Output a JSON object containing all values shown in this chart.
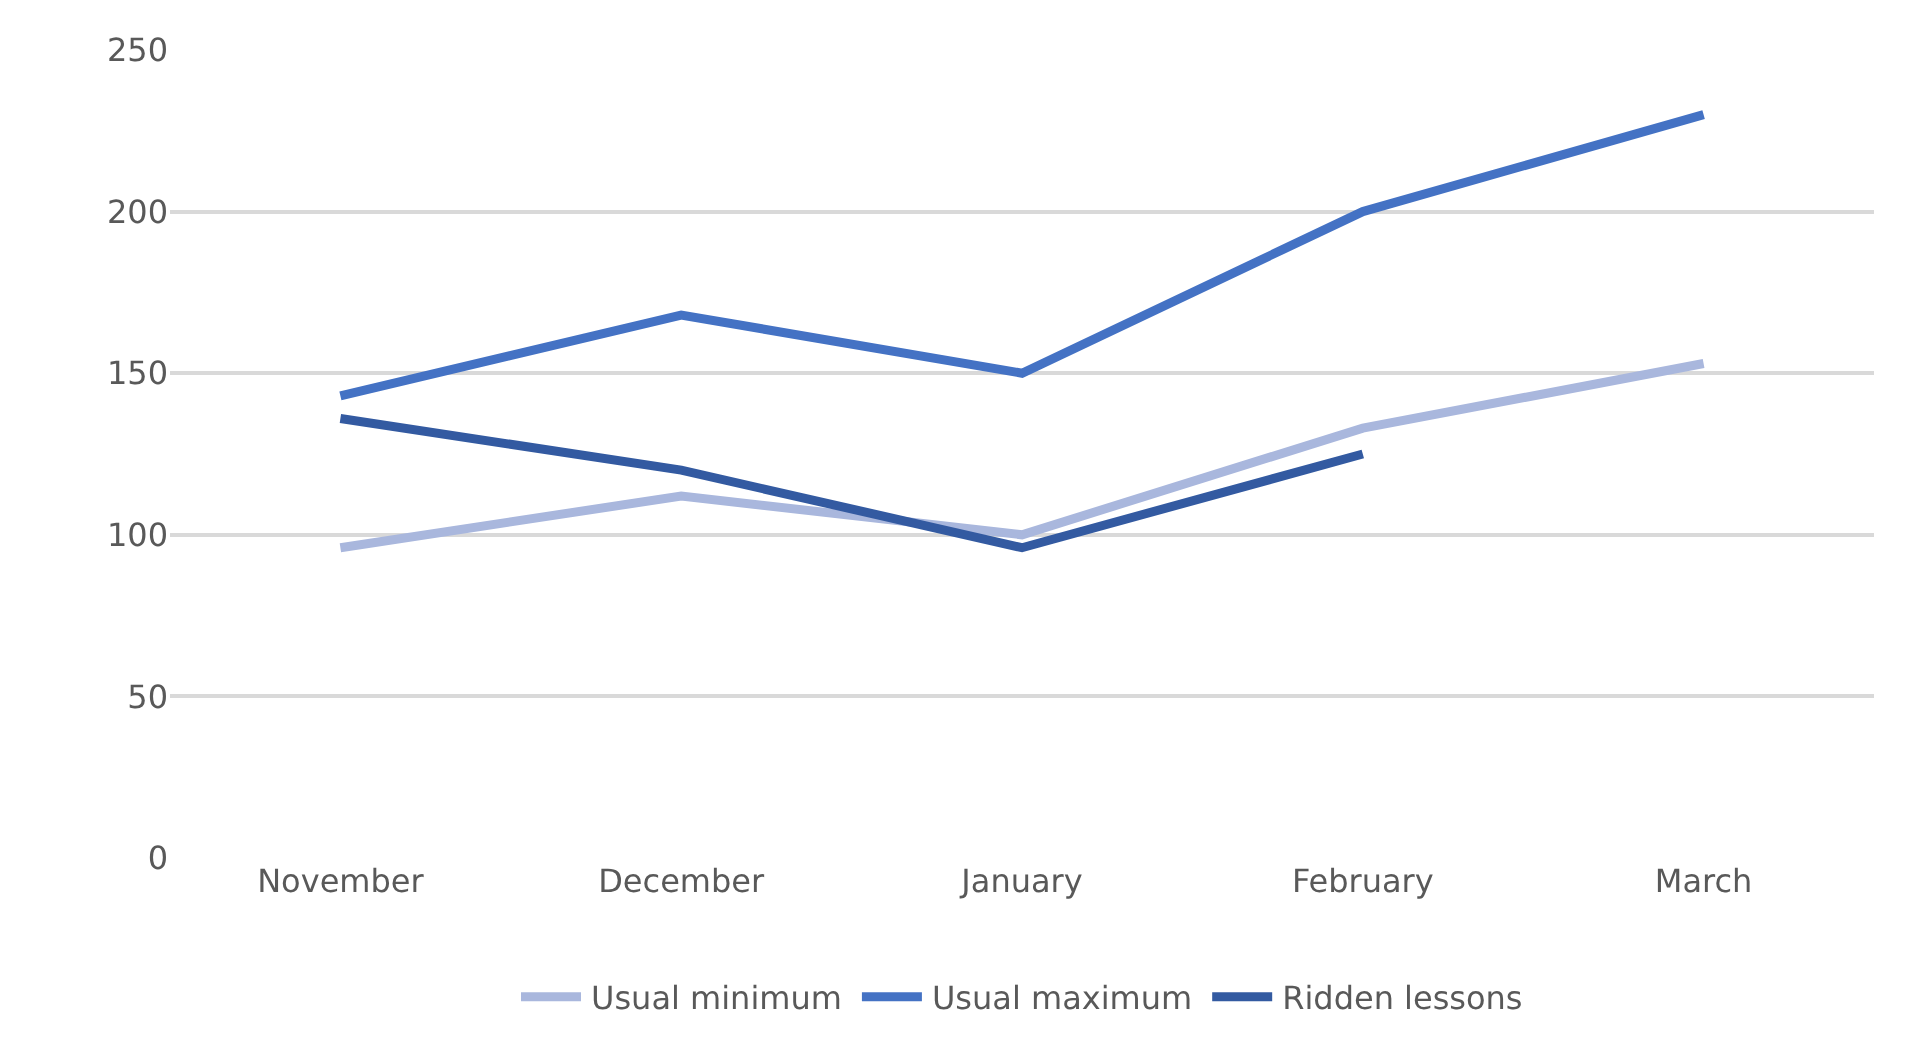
{
  "chart_data": {
    "type": "line",
    "categories": [
      "November",
      "December",
      "January",
      "February",
      "March"
    ],
    "series": [
      {
        "name": "Usual minimum",
        "color": "#a9b7dd",
        "values": [
          96,
          112,
          100,
          133,
          153
        ]
      },
      {
        "name": "Usual maximum",
        "color": "#4472c4",
        "values": [
          143,
          168,
          150,
          200,
          230
        ]
      },
      {
        "name": "Ridden lessons",
        "color": "#335aa1",
        "values": [
          136,
          120,
          96,
          125,
          null
        ]
      }
    ],
    "ylim": [
      0,
      250
    ],
    "yticks": [
      0,
      50,
      100,
      150,
      200,
      250
    ],
    "grid": "y",
    "legend": "bottom",
    "marker": "none",
    "line_style": "solid"
  }
}
